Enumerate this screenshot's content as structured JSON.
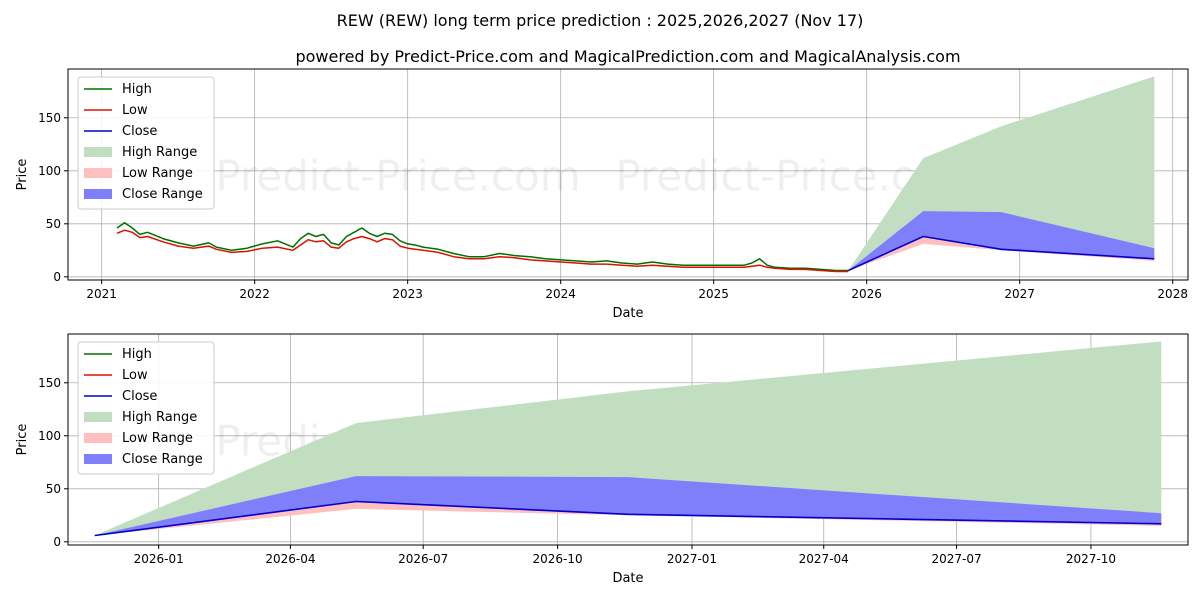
{
  "title": "REW (REW) long term price prediction : 2025,2026,2027 (Nov 17)",
  "subtitle": "powered by Predict-Price.com and MagicalPrediction.com and MagicalAnalysis.com",
  "watermark": "Predict-Price.com",
  "colors": {
    "high": "#007000",
    "low": "#dd1100",
    "close": "#0000cc",
    "high_range": "#c1dfc0",
    "low_range": "#ffbfbf",
    "close_range": "#7f7ffc"
  },
  "chart_data": [
    {
      "type": "line",
      "name": "long-term",
      "xlabel": "Date",
      "ylabel": "Price",
      "x_range": [
        2020.78,
        2028.1
      ],
      "ylim": [
        -3,
        196
      ],
      "x_ticks": [
        2021,
        2022,
        2023,
        2024,
        2025,
        2026,
        2027,
        2028
      ],
      "x_tick_labels": [
        "2021",
        "2022",
        "2023",
        "2024",
        "2025",
        "2026",
        "2027",
        "2028"
      ],
      "y_ticks": [
        0,
        50,
        100,
        150
      ],
      "y_tick_labels": [
        "0",
        "50",
        "100",
        "150"
      ],
      "grid": true,
      "legend": [
        "High",
        "Low",
        "Close",
        "High Range",
        "Low Range",
        "Close Range"
      ],
      "legend_position": "top-left",
      "history": {
        "x": [
          2021.1,
          2021.15,
          2021.2,
          2021.25,
          2021.3,
          2021.4,
          2021.5,
          2021.6,
          2021.7,
          2021.75,
          2021.85,
          2021.95,
          2022.05,
          2022.15,
          2022.25,
          2022.3,
          2022.35,
          2022.4,
          2022.45,
          2022.5,
          2022.55,
          2022.6,
          2022.65,
          2022.7,
          2022.75,
          2022.8,
          2022.85,
          2022.9,
          2022.95,
          2023.0,
          2023.05,
          2023.1,
          2023.2,
          2023.3,
          2023.4,
          2023.5,
          2023.6,
          2023.7,
          2023.8,
          2023.9,
          2024.0,
          2024.1,
          2024.2,
          2024.3,
          2024.4,
          2024.5,
          2024.6,
          2024.7,
          2024.8,
          2024.9,
          2025.0,
          2025.1,
          2025.2,
          2025.25,
          2025.3,
          2025.35,
          2025.4,
          2025.5,
          2025.6,
          2025.7,
          2025.8,
          2025.88
        ],
        "high": [
          46,
          51,
          46,
          40,
          42,
          36,
          32,
          29,
          32,
          28,
          25,
          27,
          31,
          34,
          28,
          36,
          41,
          38,
          40,
          32,
          30,
          38,
          42,
          46,
          41,
          38,
          41,
          40,
          34,
          31,
          30,
          28,
          26,
          22,
          19,
          19,
          22,
          20,
          19,
          17,
          16,
          15,
          14,
          15,
          13,
          12,
          14,
          12,
          11,
          11,
          11,
          11,
          11,
          13,
          17,
          11,
          9,
          8,
          8,
          7,
          6,
          6
        ],
        "low": [
          41,
          44,
          42,
          37,
          38,
          33,
          29,
          27,
          29,
          26,
          23,
          24,
          27,
          28,
          25,
          30,
          35,
          33,
          34,
          28,
          27,
          33,
          36,
          38,
          36,
          33,
          36,
          35,
          29,
          27,
          26,
          25,
          23,
          19,
          17,
          17,
          19,
          18,
          16,
          15,
          14,
          13,
          12,
          12,
          11,
          10,
          11,
          10,
          9,
          9,
          9,
          9,
          9,
          10,
          11,
          9,
          8,
          7,
          7,
          6,
          5,
          5
        ],
        "close": [
          43,
          47,
          44,
          38,
          40,
          34,
          30,
          28,
          30,
          27,
          24,
          25,
          29,
          31,
          27,
          33,
          38,
          35,
          37,
          30,
          28,
          35,
          39,
          42,
          38,
          35,
          38,
          37,
          31,
          29,
          28,
          26,
          24,
          20,
          18,
          18,
          20,
          19,
          17,
          16,
          15,
          14,
          13,
          13,
          12,
          11,
          12,
          11,
          10,
          10,
          10,
          10,
          10,
          11,
          13,
          10,
          8,
          7.5,
          7.5,
          6.5,
          5.5,
          5.5
        ]
      },
      "forecast": {
        "x": [
          2025.88,
          2026.37,
          2026.88,
          2027.88
        ],
        "high_range_upper": [
          6,
          112,
          142,
          189
        ],
        "high_range_lower": [
          6,
          38,
          30,
          17
        ],
        "low_range_upper": [
          6,
          38,
          26,
          17
        ],
        "low_range_lower": [
          6,
          31,
          25,
          15
        ],
        "close_range_upper": [
          6,
          62,
          61,
          27
        ],
        "close_range_lower": [
          6,
          38,
          26,
          17
        ],
        "close": [
          6,
          38,
          26,
          17
        ]
      }
    },
    {
      "type": "line",
      "name": "forecast-zoom",
      "xlabel": "Date",
      "ylabel": "Price",
      "x_range": [
        2025.83,
        2027.93
      ],
      "ylim": [
        -3,
        196
      ],
      "x_ticks": [
        2026.0,
        2026.247,
        2026.496,
        2026.748,
        2027.0,
        2027.247,
        2027.496,
        2027.748
      ],
      "x_tick_labels": [
        "2026-01",
        "2026-04",
        "2026-07",
        "2026-10",
        "2027-01",
        "2027-04",
        "2027-07",
        "2027-10"
      ],
      "y_ticks": [
        0,
        50,
        100,
        150
      ],
      "y_tick_labels": [
        "0",
        "50",
        "100",
        "150"
      ],
      "grid": true,
      "legend": [
        "High",
        "Low",
        "Close",
        "High Range",
        "Low Range",
        "Close Range"
      ],
      "legend_position": "top-left",
      "forecast": {
        "x": [
          2025.88,
          2026.37,
          2026.88,
          2027.88
        ],
        "high_range_upper": [
          6,
          112,
          142,
          189
        ],
        "high_range_lower": [
          6,
          38,
          30,
          17
        ],
        "low_range_upper": [
          6,
          38,
          26,
          17
        ],
        "low_range_lower": [
          6,
          31,
          25,
          15
        ],
        "close_range_upper": [
          6,
          62,
          61,
          27
        ],
        "close_range_lower": [
          6,
          38,
          26,
          17
        ],
        "close": [
          6,
          38,
          26,
          17
        ]
      }
    }
  ]
}
